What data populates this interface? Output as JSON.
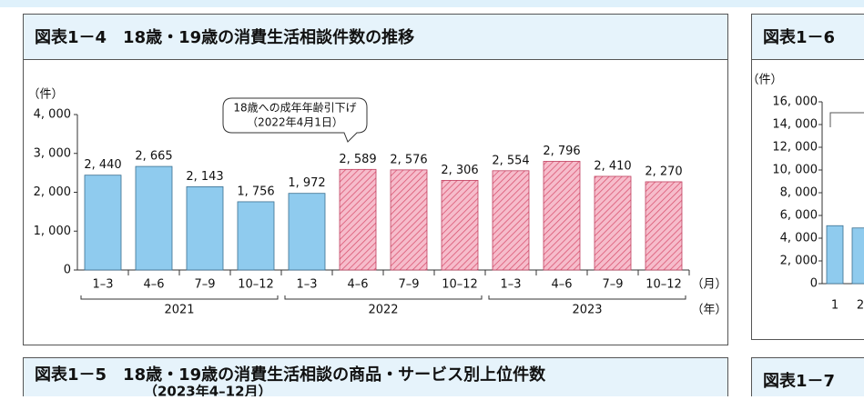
{
  "chart_data": [
    {
      "type": "bar",
      "title": "図表1－4　18歳・19歳の消費生活相談件数の推移",
      "y_unit": "（件）",
      "x_unit": "（月）",
      "group_unit": "（年）",
      "categories": [
        "1–3",
        "4–6",
        "7–9",
        "10–12",
        "1–3",
        "4–6",
        "7–9",
        "10–12",
        "1–3",
        "4–6",
        "7–9",
        "10–12"
      ],
      "groups": [
        "2021",
        "2022",
        "2023"
      ],
      "values": [
        2440,
        2665,
        2143,
        1756,
        1972,
        2589,
        2576,
        2306,
        2554,
        2796,
        2410,
        2270
      ],
      "value_labels": [
        "2, 440",
        "2, 665",
        "2, 143",
        "1, 756",
        "1, 972",
        "2, 589",
        "2, 576",
        "2, 306",
        "2, 554",
        "2, 796",
        "2, 410",
        "2, 270"
      ],
      "colors": [
        "#8fcbee",
        "#8fcbee",
        "#8fcbee",
        "#8fcbee",
        "#8fcbee",
        "#f6bccb",
        "#f6bccb",
        "#f6bccb",
        "#f6bccb",
        "#f6bccb",
        "#f6bccb",
        "#f6bccb"
      ],
      "hatched": [
        false,
        false,
        false,
        false,
        false,
        true,
        true,
        true,
        true,
        true,
        true,
        true
      ],
      "annotations": [
        "18歳への成年年齢引下げ",
        "（2022年4月1日）"
      ],
      "ylim": [
        0,
        4000
      ],
      "yticks": [
        0,
        {
          "value": 1000,
          "label": "1, 000"
        },
        {
          "value": 2000,
          "label": "2, 000"
        },
        {
          "value": 3000,
          "label": "3, 000"
        },
        {
          "value": 4000,
          "label": "4, 000"
        }
      ]
    },
    {
      "type": "bar",
      "title": "図表1－6",
      "y_unit": "（件）",
      "categories": [
        "1",
        "2"
      ],
      "values": [
        5100,
        4900
      ],
      "colors": [
        "#8fcbee",
        "#8fcbee"
      ],
      "hatched": [
        false,
        false
      ],
      "ylim": [
        0,
        16000
      ],
      "yticks": [
        0,
        {
          "value": 2000,
          "label": "2, 000"
        },
        {
          "value": 4000,
          "label": "4, 000"
        },
        {
          "value": 6000,
          "label": "6, 000"
        },
        {
          "value": 8000,
          "label": "8, 000"
        },
        {
          "value": 10000,
          "label": "10, 000"
        },
        {
          "value": 12000,
          "label": "12, 000"
        },
        {
          "value": 14000,
          "label": "14, 000"
        },
        {
          "value": 16000,
          "label": "16, 000"
        }
      ]
    }
  ],
  "other_panels": [
    {
      "title": "図表1－5　18歳・19歳の消費生活相談の商品・サービス別上位件数",
      "subtitle": "（2023年4–12月）"
    },
    {
      "title": "図表1－7"
    }
  ]
}
